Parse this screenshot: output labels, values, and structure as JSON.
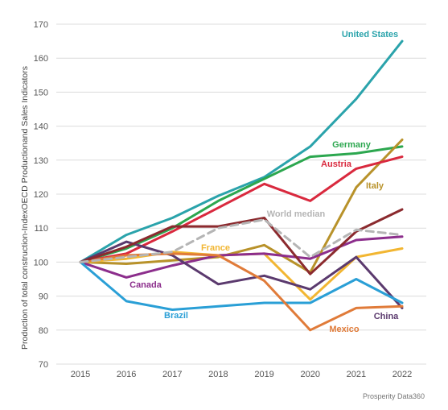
{
  "chart_data": {
    "type": "line",
    "ylabel": "Production of total construction-IndexOECD Productionand  Sales Indicators",
    "xlabel": "",
    "x": [
      "2015",
      "2016",
      "2017",
      "2018",
      "2019",
      "2020",
      "2021",
      "2022"
    ],
    "ylim": [
      70,
      170
    ],
    "yticks": [
      70,
      80,
      90,
      100,
      110,
      120,
      130,
      140,
      150,
      160,
      170
    ],
    "grid": true,
    "legend": "inline labels at line ends",
    "source": "Prosperity Data360",
    "series": [
      {
        "name": "United States",
        "color": "#2aa3ab",
        "dashed": false,
        "values": [
          100,
          108,
          113,
          119.5,
          125,
          134,
          148,
          165
        ]
      },
      {
        "name": "Germany",
        "color": "#2ca74f",
        "dashed": false,
        "values": [
          100,
          104,
          110,
          118,
          124.5,
          131,
          132,
          134
        ]
      },
      {
        "name": "Italy",
        "color": "#b8922a",
        "dashed": false,
        "values": [
          100,
          99.5,
          100.5,
          101.5,
          105,
          97,
          122,
          136
        ]
      },
      {
        "name": "Austria",
        "color": "#d9293e",
        "dashed": false,
        "values": [
          100,
          102.5,
          109,
          116,
          123,
          118,
          127.5,
          131
        ]
      },
      {
        "name": "World median",
        "color": "#b5b5b5",
        "dashed": true,
        "values": [
          100,
          101.5,
          103,
          110,
          112.5,
          101.5,
          109.5,
          108
        ]
      },
      {
        "name": "France",
        "color": "#f2b632",
        "dashed": false,
        "values": [
          100,
          101,
          103,
          102,
          102.5,
          89,
          101.5,
          104
        ]
      },
      {
        "name": "Canada",
        "color": "#8c2e8c",
        "dashed": false,
        "values": [
          100,
          95.5,
          99,
          102,
          102.5,
          101,
          106.5,
          107.5
        ]
      },
      {
        "name": "China",
        "color": "#5b3a6e",
        "dashed": false,
        "values": [
          100,
          106,
          102,
          93.5,
          96,
          92,
          101.5,
          86.5
        ]
      },
      {
        "name": "Brazil",
        "color": "#2a9fd6",
        "dashed": false,
        "values": [
          100,
          88.5,
          86,
          87,
          88,
          88,
          95,
          88
        ]
      },
      {
        "name": "Mexico",
        "color": "#e07b39",
        "dashed": false,
        "values": [
          100,
          102,
          102.5,
          102,
          94.5,
          80,
          86.5,
          87
        ]
      },
      {
        "name": "",
        "color": "#8b2a2e",
        "dashed": false,
        "values": [
          100,
          104.5,
          110.5,
          110.5,
          113,
          96.5,
          109,
          115.5
        ]
      }
    ]
  }
}
